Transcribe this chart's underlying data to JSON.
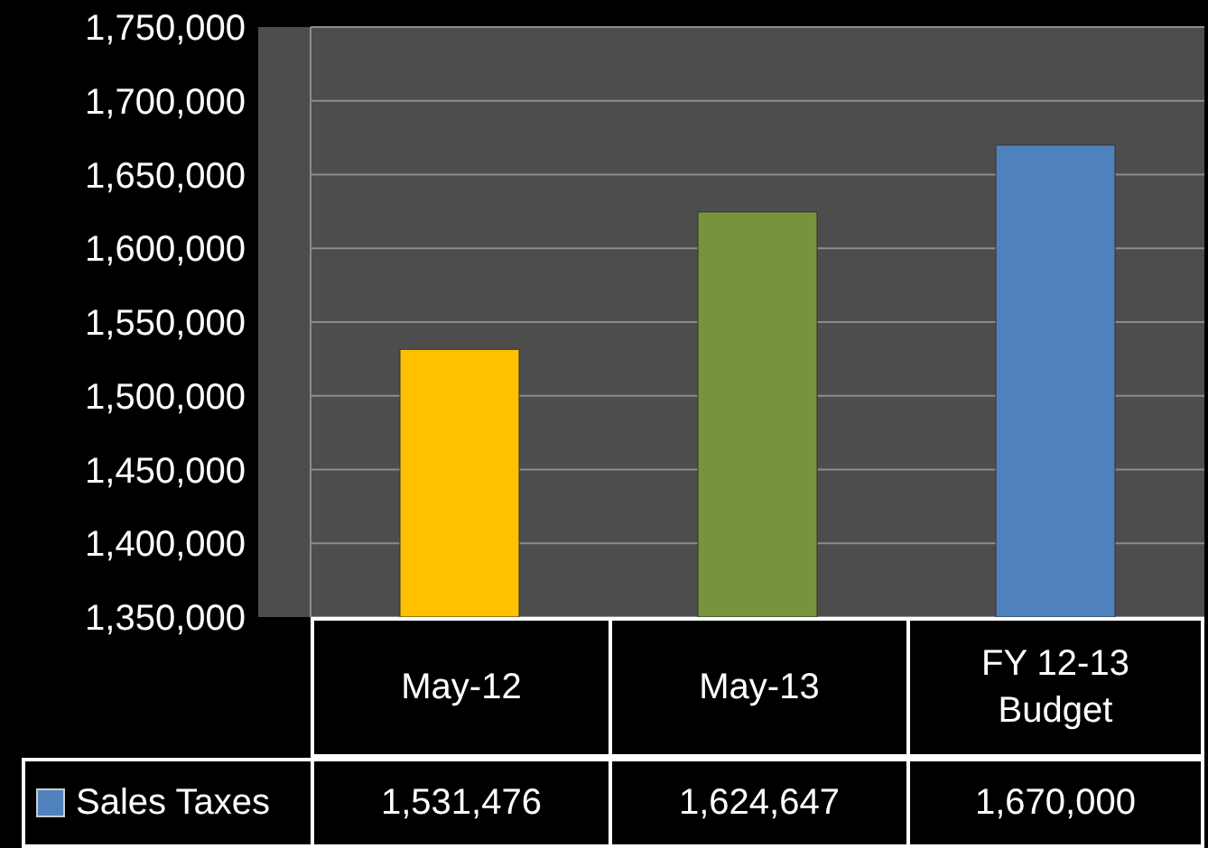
{
  "chart_data": {
    "type": "bar",
    "categories": [
      "May-12",
      "May-13",
      "FY 12-13 Budget"
    ],
    "series": [
      {
        "name": "Sales Taxes",
        "values": [
          1531476,
          1624647,
          1670000
        ],
        "value_labels": [
          "1,531,476",
          "1,624,647",
          "1,670,000"
        ]
      }
    ],
    "colors": [
      "#ffc000",
      "#77933c",
      "#4f81bd"
    ],
    "ylim": [
      1350000,
      1750000
    ],
    "yticks": [
      {
        "value": 1350000,
        "label": "1,350,000"
      },
      {
        "value": 1400000,
        "label": "1,400,000"
      },
      {
        "value": 1450000,
        "label": "1,450,000"
      },
      {
        "value": 1500000,
        "label": "1,500,000"
      },
      {
        "value": 1550000,
        "label": "1,550,000"
      },
      {
        "value": 1600000,
        "label": "1,600,000"
      },
      {
        "value": 1650000,
        "label": "1,650,000"
      },
      {
        "value": 1700000,
        "label": "1,700,000"
      },
      {
        "value": 1750000,
        "label": "1,750,000"
      }
    ],
    "grid": "y",
    "legend": "bottom"
  }
}
